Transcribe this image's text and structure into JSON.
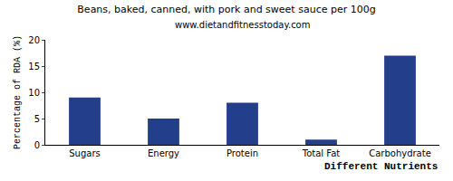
{
  "chart_data": {
    "type": "bar",
    "title": "Beans, baked, canned, with pork and sweet sauce per 100g",
    "subtitle": "www.dietandfitnesstoday.com",
    "x_label": "Different Nutrients",
    "y_label": "Percentage of RDA (%)",
    "categories": [
      "Sugars",
      "Energy",
      "Protein",
      "Total Fat",
      "Carbohydrate"
    ],
    "values": [
      9,
      5,
      8,
      1,
      17
    ],
    "color": "#233e8b",
    "ylim": [
      0,
      20
    ],
    "yticks": [
      0,
      5,
      10,
      15,
      20
    ],
    "grid": false
  }
}
